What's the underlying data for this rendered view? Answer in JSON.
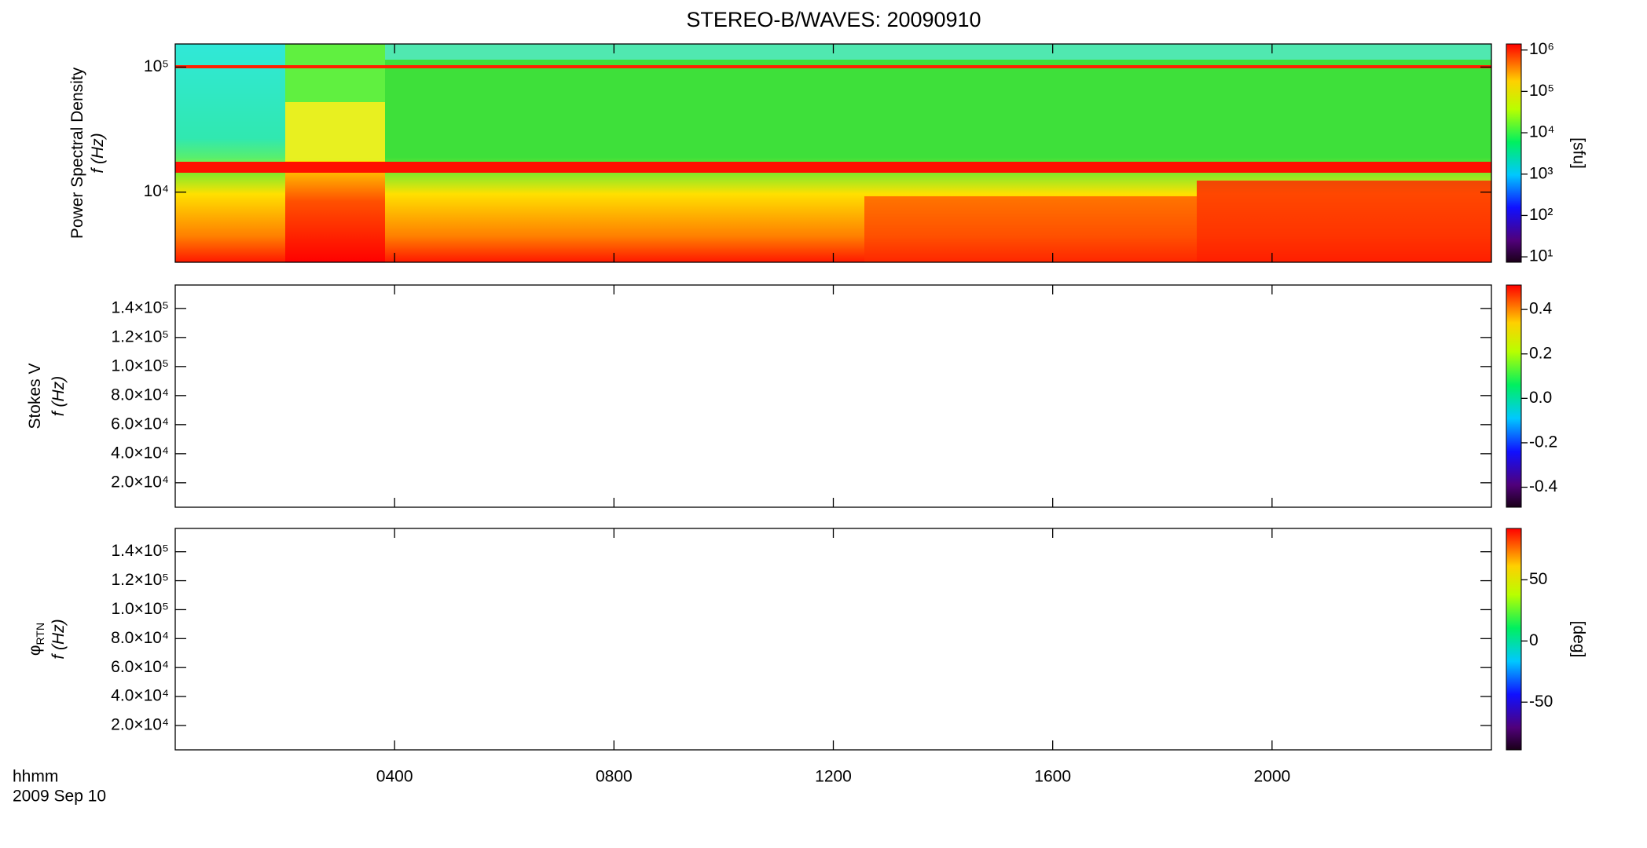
{
  "chart_data": [
    {
      "type": "spectrogram",
      "title": "STEREO-B/WAVES: 20090910",
      "ylabel": [
        "Power Spectral Density",
        "f (Hz)"
      ],
      "ylog": true,
      "ylim": [
        2750,
        153000
      ],
      "yticks": [
        {
          "value": 10000,
          "label": "10⁴"
        },
        {
          "value": 100000,
          "label": "10⁵"
        }
      ],
      "colorbar": {
        "log": true,
        "lim": [
          7.4,
          1400000
        ],
        "label": "[sfu]",
        "ticks": [
          {
            "value": 10,
            "label": "10¹"
          },
          {
            "value": 100,
            "label": "10²"
          },
          {
            "value": 1000,
            "label": "10³"
          },
          {
            "value": 10000,
            "label": "10⁴"
          },
          {
            "value": 100000,
            "label": "10⁵"
          },
          {
            "value": 1000000,
            "label": "10⁶"
          }
        ]
      }
    },
    {
      "type": "spectrogram",
      "ylabel": [
        "Stokes V",
        "f (Hz)"
      ],
      "ylog": false,
      "ylim": [
        3170,
        156100
      ],
      "yticks": [
        {
          "value": 20000,
          "label": "2.0×10⁴"
        },
        {
          "value": 40000,
          "label": "4.0×10⁴"
        },
        {
          "value": 60000,
          "label": "6.0×10⁴"
        },
        {
          "value": 80000,
          "label": "8.0×10⁴"
        },
        {
          "value": 100000,
          "label": "1.0×10⁵"
        },
        {
          "value": 120000,
          "label": "1.2×10⁵"
        },
        {
          "value": 140000,
          "label": "1.4×10⁵"
        }
      ],
      "colorbar": {
        "log": false,
        "lim": [
          -0.49,
          0.51
        ],
        "ticks": [
          -0.4,
          -0.2,
          {
            "value": 0,
            "label": "0.0"
          },
          0.2,
          0.4
        ]
      }
    },
    {
      "type": "spectrogram",
      "ylabel": [
        "φ",
        "f (Hz)"
      ],
      "ylabel_sub": "RTN",
      "ylog": false,
      "ylim": [
        3170,
        156100
      ],
      "yticks": [
        {
          "value": 20000,
          "label": "2.0×10⁴"
        },
        {
          "value": 40000,
          "label": "4.0×10⁴"
        },
        {
          "value": 60000,
          "label": "6.0×10⁴"
        },
        {
          "value": 80000,
          "label": "8.0×10⁴"
        },
        {
          "value": 100000,
          "label": "1.0×10⁵"
        },
        {
          "value": 120000,
          "label": "1.2×10⁵"
        },
        {
          "value": 140000,
          "label": "1.4×10⁵"
        }
      ],
      "colorbar": {
        "log": false,
        "lim": [
          -89,
          92
        ],
        "label": "[deg]",
        "ticks": [
          -50,
          0,
          50
        ]
      }
    }
  ],
  "time_axis": {
    "xlim": [
      0,
      24
    ],
    "label": [
      "hhmm",
      "2009 Sep 10"
    ],
    "xticks": [
      {
        "value": 4,
        "label": "0400"
      },
      {
        "value": 8,
        "label": "0800"
      },
      {
        "value": 12,
        "label": "1200"
      },
      {
        "value": 16,
        "label": "1600"
      },
      {
        "value": 20,
        "label": "2000"
      }
    ]
  }
}
